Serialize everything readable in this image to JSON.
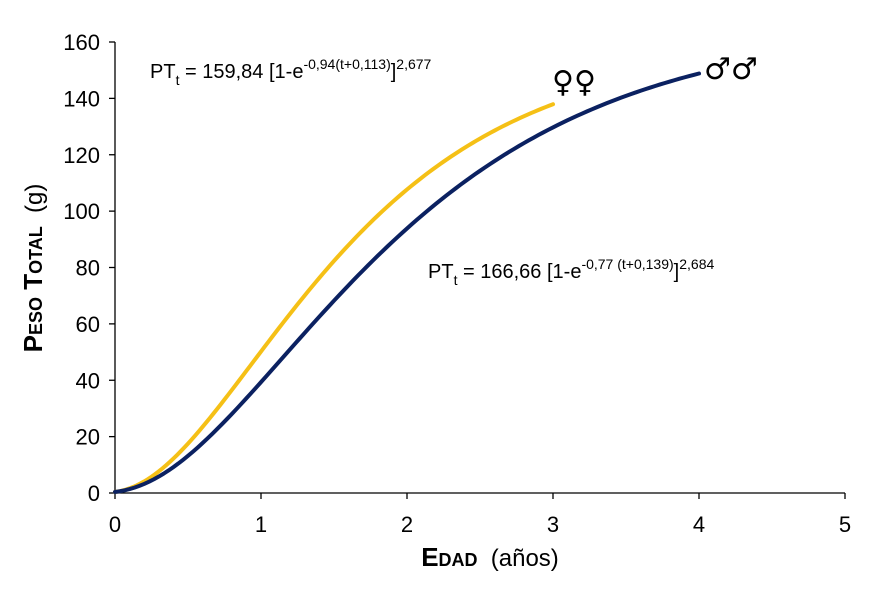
{
  "chart_data": {
    "type": "line",
    "xlabel_caps": "Edad",
    "xlabel_unit": "(años)",
    "ylabel_caps": "Peso Total",
    "ylabel_unit": "(g)",
    "xlim": [
      0,
      5
    ],
    "ylim": [
      0,
      160
    ],
    "x_ticks": [
      "0",
      "1",
      "2",
      "3",
      "4",
      "5"
    ],
    "y_ticks": [
      "0",
      "20",
      "40",
      "60",
      "80",
      "100",
      "120",
      "140",
      "160"
    ],
    "grid": false,
    "series": [
      {
        "name": "♀♀",
        "color": "#F5C016",
        "Winf": 159.84,
        "k": 0.94,
        "t0": 0.113,
        "b": 2.677,
        "x_range": [
          0,
          3
        ],
        "x": [
          0,
          0.5,
          1,
          1.5,
          2,
          2.5,
          3
        ],
        "y": [
          1.7,
          20.4,
          50.8,
          82.1,
          107.7,
          125.8,
          137.7
        ],
        "equation": {
          "lhs_main": "PT",
          "lhs_sub": "t",
          "rhs_main": " = 159,84  [1-e",
          "rhs_exp": "-0,94(t+0,113)",
          "rhs_close": "]",
          "rhs_power": "2,677"
        }
      },
      {
        "name": "♂♂",
        "color": "#0B2161",
        "Winf": 166.66,
        "k": 0.77,
        "t0": 0.139,
        "b": 2.684,
        "x_range": [
          0,
          4
        ],
        "x": [
          0,
          0.5,
          1,
          1.5,
          2,
          2.5,
          3,
          3.5,
          4
        ],
        "y": [
          1.0,
          13.1,
          38.0,
          66.4,
          92.2,
          112.6,
          127.6,
          138.8,
          147.1
        ],
        "equation": {
          "lhs_main": "PT",
          "lhs_sub": "t",
          "rhs_main": " = 166,66  [1-e",
          "rhs_exp": "-0,77 (t+0,139)",
          "rhs_close": "]",
          "rhs_power": "2,684"
        }
      }
    ]
  }
}
